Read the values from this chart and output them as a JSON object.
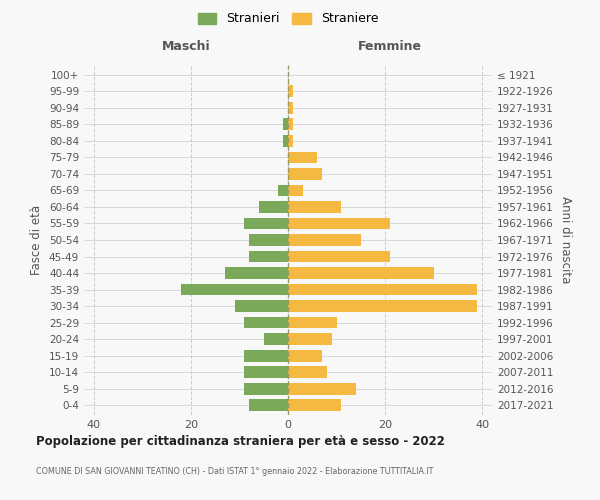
{
  "age_groups": [
    "0-4",
    "5-9",
    "10-14",
    "15-19",
    "20-24",
    "25-29",
    "30-34",
    "35-39",
    "40-44",
    "45-49",
    "50-54",
    "55-59",
    "60-64",
    "65-69",
    "70-74",
    "75-79",
    "80-84",
    "85-89",
    "90-94",
    "95-99",
    "100+"
  ],
  "birth_years": [
    "2017-2021",
    "2012-2016",
    "2007-2011",
    "2002-2006",
    "1997-2001",
    "1992-1996",
    "1987-1991",
    "1982-1986",
    "1977-1981",
    "1972-1976",
    "1967-1971",
    "1962-1966",
    "1957-1961",
    "1952-1956",
    "1947-1951",
    "1942-1946",
    "1937-1941",
    "1932-1936",
    "1927-1931",
    "1922-1926",
    "≤ 1921"
  ],
  "maschi": [
    8,
    9,
    9,
    9,
    5,
    9,
    11,
    22,
    13,
    8,
    8,
    9,
    6,
    2,
    0,
    0,
    1,
    1,
    0,
    0,
    0
  ],
  "femmine": [
    11,
    14,
    8,
    7,
    9,
    10,
    39,
    39,
    30,
    21,
    15,
    21,
    11,
    3,
    7,
    6,
    1,
    1,
    1,
    1,
    0
  ],
  "color_maschi": "#7aaa59",
  "color_femmine": "#f5b942",
  "background_color": "#f8f8f8",
  "grid_color": "#cccccc",
  "title": "Popolazione per cittadinanza straniera per età e sesso - 2022",
  "subtitle": "COMUNE DI SAN GIOVANNI TEATINO (CH) - Dati ISTAT 1° gennaio 2022 - Elaborazione TUTTITALIA.IT",
  "xlabel_left": "Maschi",
  "xlabel_right": "Femmine",
  "ylabel_left": "Fasce di età",
  "ylabel_right": "Anni di nascita",
  "legend_maschi": "Stranieri",
  "legend_femmine": "Straniere",
  "xlim": 42,
  "dashed_color": "#999966"
}
